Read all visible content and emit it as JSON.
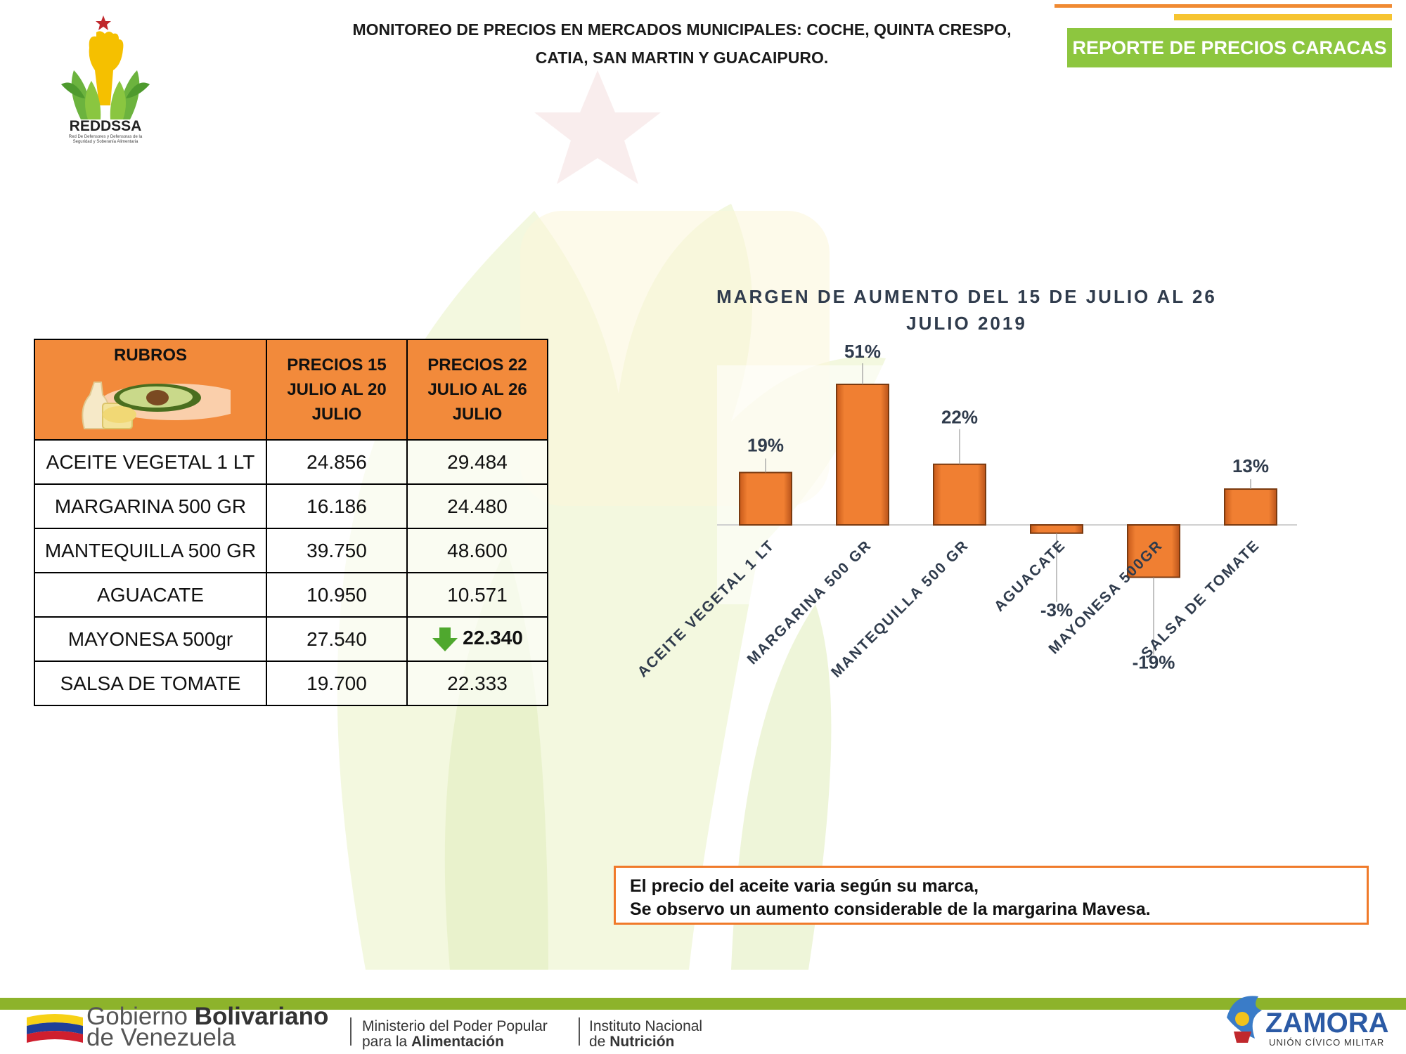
{
  "header": {
    "title_line1": "MONITOREO DE PRECIOS EN MERCADOS MUNICIPALES: COCHE, QUINTA CRESPO,",
    "title_line2": "CATIA, SAN MARTIN Y GUACAIPURO.",
    "badge": "REPORTE DE PRECIOS CARACAS"
  },
  "logo": {
    "name": "REDDSSA",
    "subtitle": "Red De Defensores y Defensoras de la Seguridad y Soberanía Alimentaria"
  },
  "table": {
    "headers": [
      "RUBROS",
      "PRECIOS 15 JULIO AL 20 JULIO",
      "PRECIOS 22 JULIO AL 26 JULIO"
    ],
    "rows": [
      {
        "item": "ACEITE VEGETAL 1 LT",
        "p1": "24.856",
        "p2": "29.484"
      },
      {
        "item": "MARGARINA 500 GR",
        "p1": "16.186",
        "p2": "24.480"
      },
      {
        "item": "MANTEQUILLA 500 GR",
        "p1": "39.750",
        "p2": "48.600"
      },
      {
        "item": "AGUACATE",
        "p1": "10.950",
        "p2": "10.571"
      },
      {
        "item": "MAYONESA 500gr",
        "p1": "27.540",
        "p2": "22.340"
      },
      {
        "item": "SALSA DE TOMATE",
        "p1": "19.700",
        "p2": "22.333"
      }
    ],
    "highlight_icon": "green-down-arrow-icon"
  },
  "chart_data": {
    "type": "bar",
    "title": "MARGEN DE AUMENTO DEL  15 DE JULIO AL 26 JULIO 2019",
    "categories": [
      "ACEITE VEGETAL 1 LT",
      "MARGARINA 500 GR",
      "MANTEQUILLA 500 GR",
      "AGUACATE",
      "MAYONESA 500GR",
      "SALSA DE TOMATE"
    ],
    "values": [
      19,
      51,
      22,
      -3,
      -19,
      13
    ],
    "labels": [
      "19%",
      "51%",
      "22%",
      "-3%",
      "-19%",
      "13%"
    ],
    "unit": "%",
    "ylim": [
      -25,
      55
    ],
    "grid": false,
    "legend": "none",
    "bar_color": "#f07f32"
  },
  "note": {
    "line1": "El precio del aceite varia según su marca,",
    "line2": "Se observo un aumento considerable de la margarina Mavesa."
  },
  "footer": {
    "gob_line1_a": "Gobierno ",
    "gob_line1_b": "Bolivariano",
    "gob_line2": "de Venezuela",
    "min_line1": "Ministerio del Poder Popular",
    "min_line2_a": "para la ",
    "min_line2_b": "Alimentación",
    "inst_line1": "Instituto Nacional",
    "inst_line2_a": "de ",
    "inst_line2_b": "Nutrición",
    "zamora": "ZAMORA",
    "zamora_sub": "UNIÓN CÍVICO MILITAR"
  },
  "colors": {
    "accent_orange": "#f28a3b",
    "accent_green": "#8dc63f",
    "accent_yellow": "#f6c431"
  }
}
